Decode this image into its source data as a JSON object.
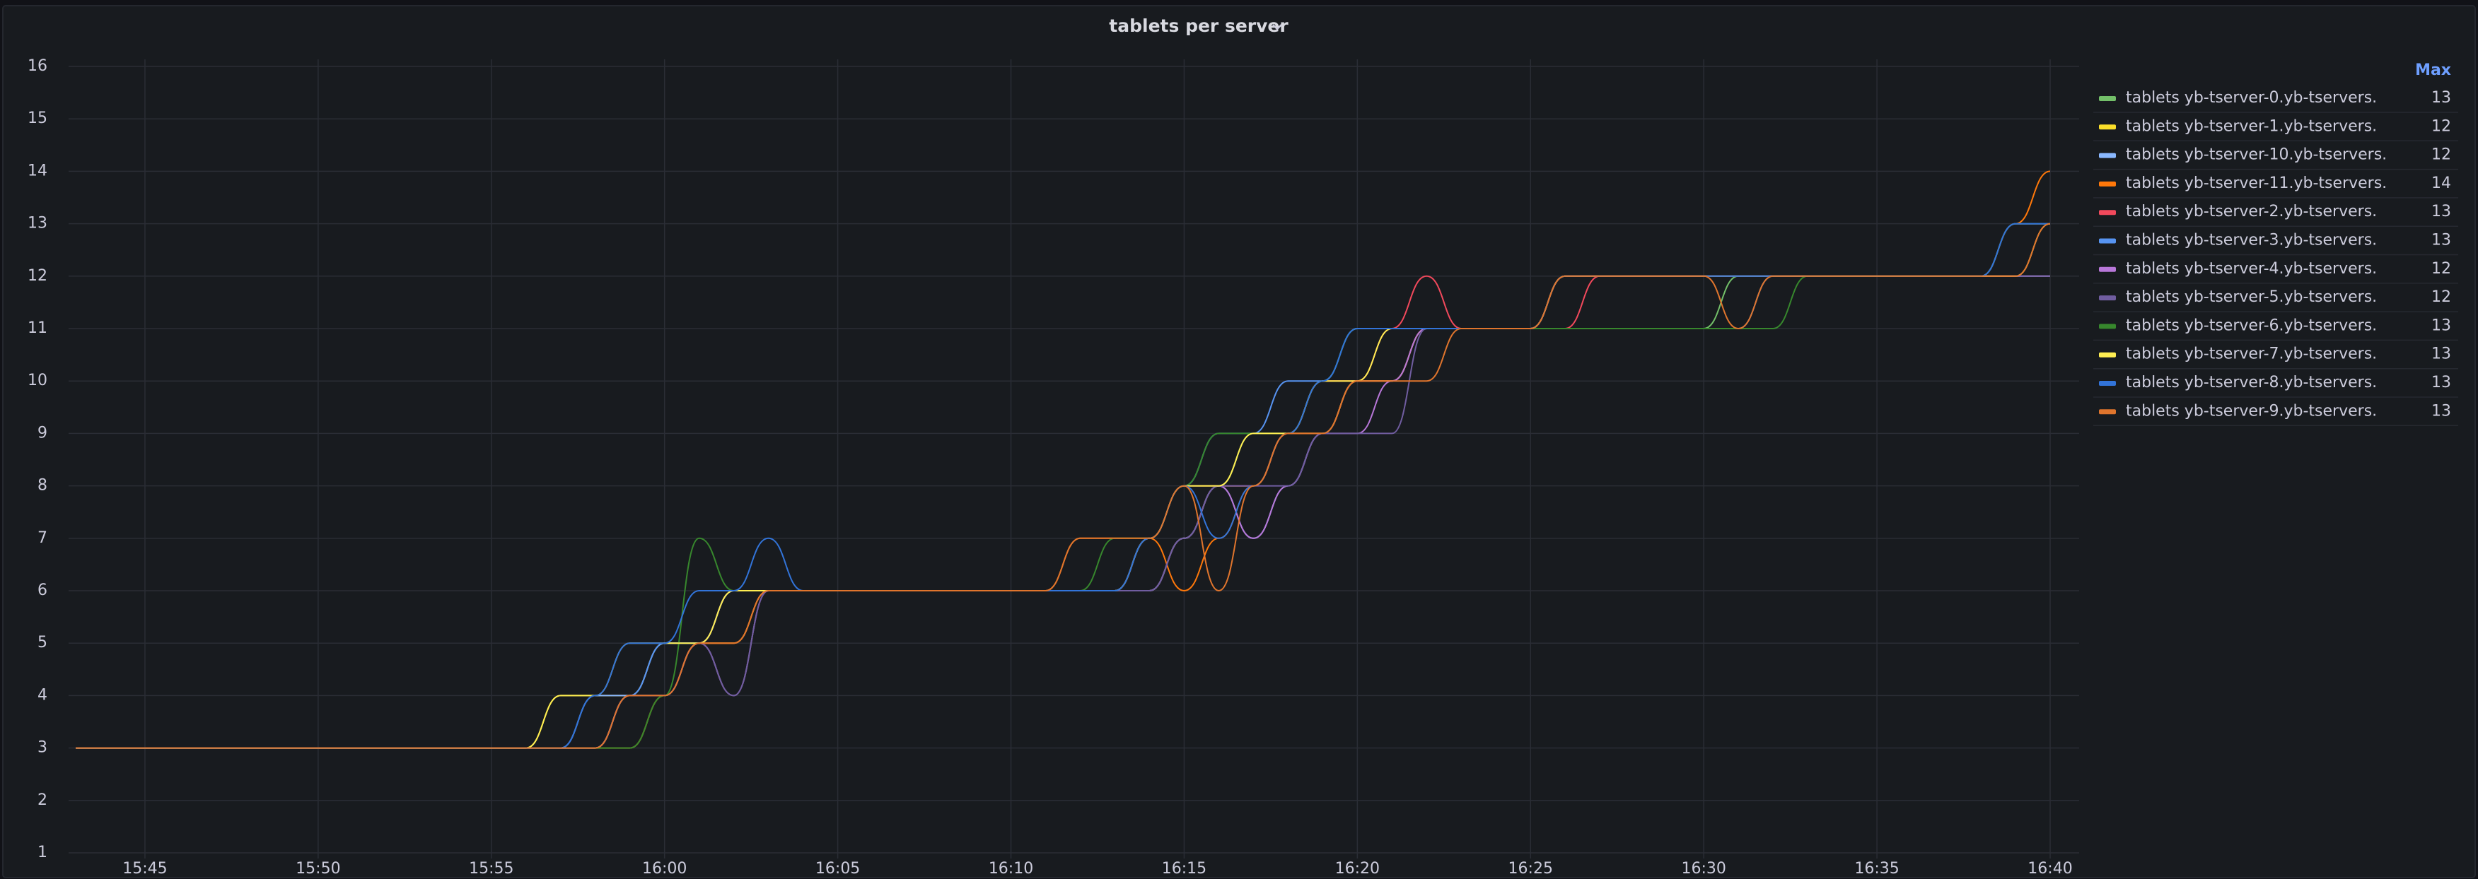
{
  "chart_data": {
    "type": "line",
    "title": "tablets per server",
    "x": [
      "15:43",
      "15:44",
      "15:45",
      "15:46",
      "15:47",
      "15:48",
      "15:49",
      "15:50",
      "15:51",
      "15:52",
      "15:53",
      "15:54",
      "15:55",
      "15:56",
      "15:57",
      "15:58",
      "15:59",
      "16:00",
      "16:01",
      "16:02",
      "16:03",
      "16:04",
      "16:05",
      "16:06",
      "16:07",
      "16:08",
      "16:09",
      "16:10",
      "16:11",
      "16:12",
      "16:13",
      "16:14",
      "16:15",
      "16:16",
      "16:17",
      "16:18",
      "16:19",
      "16:20",
      "16:21",
      "16:22",
      "16:23",
      "16:24",
      "16:25",
      "16:26",
      "16:27",
      "16:28",
      "16:29",
      "16:30",
      "16:31",
      "16:32",
      "16:33",
      "16:34",
      "16:35",
      "16:36",
      "16:37",
      "16:38",
      "16:39",
      "16:40"
    ],
    "xticks": [
      "15:45",
      "15:50",
      "15:55",
      "16:00",
      "16:05",
      "16:10",
      "16:15",
      "16:20",
      "16:25",
      "16:30",
      "16:35",
      "16:40"
    ],
    "ylim": [
      1,
      16
    ],
    "yticks": [
      1,
      2,
      3,
      4,
      5,
      6,
      7,
      8,
      9,
      10,
      11,
      12,
      13,
      14,
      15,
      16
    ],
    "grid": true,
    "legend_header": "Max",
    "series": [
      {
        "name": "tablets yb-tserver-0.yb-tservers.",
        "color": "#73bf69",
        "max": 13,
        "values": [
          3,
          3,
          3,
          3,
          3,
          3,
          3,
          3,
          3,
          3,
          3,
          3,
          3,
          3,
          3,
          3,
          4,
          4,
          5,
          6,
          6,
          6,
          6,
          6,
          6,
          6,
          6,
          6,
          6,
          6,
          6,
          7,
          8,
          8,
          9,
          9,
          10,
          11,
          11,
          11,
          11,
          11,
          11,
          11,
          11,
          11,
          11,
          11,
          12,
          12,
          12,
          12,
          12,
          12,
          12,
          12,
          13,
          13
        ]
      },
      {
        "name": "tablets yb-tserver-1.yb-tservers.",
        "color": "#fade2a",
        "max": 12,
        "values": [
          3,
          3,
          3,
          3,
          3,
          3,
          3,
          3,
          3,
          3,
          3,
          3,
          3,
          3,
          4,
          4,
          4,
          5,
          5,
          5,
          6,
          6,
          6,
          6,
          6,
          6,
          6,
          6,
          6,
          6,
          6,
          6,
          7,
          8,
          8,
          9,
          9,
          10,
          10,
          11,
          11,
          11,
          11,
          12,
          12,
          12,
          12,
          12,
          12,
          12,
          12,
          12,
          12,
          12,
          12,
          12,
          12,
          12
        ]
      },
      {
        "name": "tablets yb-tserver-10.yb-tservers.",
        "color": "#8ab8ff",
        "max": 12,
        "values": [
          3,
          3,
          3,
          3,
          3,
          3,
          3,
          3,
          3,
          3,
          3,
          3,
          3,
          3,
          3,
          4,
          4,
          5,
          5,
          6,
          6,
          6,
          6,
          6,
          6,
          6,
          6,
          6,
          6,
          6,
          6,
          6,
          7,
          8,
          7,
          8,
          9,
          10,
          10,
          11,
          11,
          11,
          11,
          12,
          12,
          12,
          12,
          12,
          12,
          12,
          12,
          12,
          12,
          12,
          12,
          12,
          12,
          12
        ]
      },
      {
        "name": "tablets yb-tserver-11.yb-tservers.",
        "color": "#ff780a",
        "max": 14,
        "values": [
          3,
          3,
          3,
          3,
          3,
          3,
          3,
          3,
          3,
          3,
          3,
          3,
          3,
          3,
          3,
          3,
          3,
          4,
          5,
          5,
          6,
          6,
          6,
          6,
          6,
          6,
          6,
          6,
          6,
          7,
          7,
          7,
          6,
          7,
          8,
          9,
          9,
          10,
          10,
          11,
          11,
          11,
          11,
          12,
          12,
          12,
          12,
          12,
          12,
          12,
          12,
          12,
          12,
          12,
          12,
          12,
          13,
          14
        ]
      },
      {
        "name": "tablets yb-tserver-2.yb-tservers.",
        "color": "#f2495c",
        "max": 13,
        "values": [
          3,
          3,
          3,
          3,
          3,
          3,
          3,
          3,
          3,
          3,
          3,
          3,
          3,
          3,
          3,
          3,
          4,
          4,
          5,
          6,
          6,
          6,
          6,
          6,
          6,
          6,
          6,
          6,
          6,
          6,
          6,
          7,
          8,
          8,
          8,
          9,
          10,
          10,
          11,
          12,
          11,
          11,
          11,
          11,
          12,
          12,
          12,
          12,
          12,
          12,
          12,
          12,
          12,
          12,
          12,
          12,
          13,
          13
        ]
      },
      {
        "name": "tablets yb-tserver-3.yb-tservers.",
        "color": "#5794f2",
        "max": 13,
        "values": [
          3,
          3,
          3,
          3,
          3,
          3,
          3,
          3,
          3,
          3,
          3,
          3,
          3,
          3,
          3,
          3,
          4,
          5,
          5,
          6,
          6,
          6,
          6,
          6,
          6,
          6,
          6,
          6,
          6,
          6,
          6,
          7,
          8,
          9,
          9,
          10,
          10,
          11,
          11,
          11,
          11,
          11,
          11,
          11,
          11,
          11,
          11,
          11,
          11,
          12,
          12,
          12,
          12,
          12,
          12,
          12,
          13,
          13
        ]
      },
      {
        "name": "tablets yb-tserver-4.yb-tservers.",
        "color": "#b877d9",
        "max": 12,
        "values": [
          3,
          3,
          3,
          3,
          3,
          3,
          3,
          3,
          3,
          3,
          3,
          3,
          3,
          3,
          3,
          3,
          4,
          4,
          5,
          4,
          6,
          6,
          6,
          6,
          6,
          6,
          6,
          6,
          6,
          6,
          6,
          6,
          7,
          8,
          7,
          8,
          9,
          9,
          10,
          11,
          11,
          11,
          11,
          12,
          12,
          12,
          12,
          12,
          12,
          12,
          12,
          12,
          12,
          12,
          12,
          12,
          12,
          12
        ]
      },
      {
        "name": "tablets yb-tserver-5.yb-tservers.",
        "color": "#705da0",
        "max": 12,
        "values": [
          3,
          3,
          3,
          3,
          3,
          3,
          3,
          3,
          3,
          3,
          3,
          3,
          3,
          3,
          3,
          3,
          4,
          4,
          5,
          4,
          6,
          6,
          6,
          6,
          6,
          6,
          6,
          6,
          6,
          6,
          6,
          6,
          7,
          8,
          8,
          8,
          9,
          9,
          9,
          11,
          11,
          11,
          11,
          12,
          12,
          12,
          12,
          12,
          12,
          12,
          12,
          12,
          12,
          12,
          12,
          12,
          12,
          12
        ]
      },
      {
        "name": "tablets yb-tserver-6.yb-tservers.",
        "color": "#37872d",
        "max": 13,
        "values": [
          3,
          3,
          3,
          3,
          3,
          3,
          3,
          3,
          3,
          3,
          3,
          3,
          3,
          3,
          3,
          3,
          3,
          4,
          7,
          6,
          6,
          6,
          6,
          6,
          6,
          6,
          6,
          6,
          6,
          6,
          7,
          7,
          8,
          9,
          9,
          9,
          10,
          11,
          11,
          11,
          11,
          11,
          11,
          11,
          11,
          11,
          11,
          11,
          11,
          11,
          12,
          12,
          12,
          12,
          12,
          12,
          13,
          13
        ]
      },
      {
        "name": "tablets yb-tserver-7.yb-tservers.",
        "color": "#ffee52",
        "max": 13,
        "values": [
          3,
          3,
          3,
          3,
          3,
          3,
          3,
          3,
          3,
          3,
          3,
          3,
          3,
          3,
          4,
          4,
          5,
          5,
          5,
          6,
          6,
          6,
          6,
          6,
          6,
          6,
          6,
          6,
          6,
          6,
          6,
          7,
          8,
          8,
          9,
          9,
          10,
          10,
          11,
          11,
          11,
          11,
          11,
          12,
          12,
          12,
          12,
          12,
          12,
          12,
          12,
          12,
          12,
          12,
          12,
          12,
          12,
          13
        ]
      },
      {
        "name": "tablets yb-tserver-8.yb-tservers.",
        "color": "#3274d9",
        "max": 13,
        "values": [
          3,
          3,
          3,
          3,
          3,
          3,
          3,
          3,
          3,
          3,
          3,
          3,
          3,
          3,
          3,
          4,
          5,
          5,
          6,
          6,
          7,
          6,
          6,
          6,
          6,
          6,
          6,
          6,
          6,
          6,
          6,
          7,
          8,
          7,
          8,
          9,
          10,
          11,
          11,
          11,
          11,
          11,
          11,
          12,
          12,
          12,
          12,
          12,
          12,
          12,
          12,
          12,
          12,
          12,
          12,
          12,
          13,
          13
        ]
      },
      {
        "name": "tablets yb-tserver-9.yb-tservers.",
        "color": "#e0752d",
        "max": 13,
        "values": [
          3,
          3,
          3,
          3,
          3,
          3,
          3,
          3,
          3,
          3,
          3,
          3,
          3,
          3,
          3,
          3,
          4,
          4,
          5,
          5,
          6,
          6,
          6,
          6,
          6,
          6,
          6,
          6,
          6,
          7,
          7,
          7,
          8,
          6,
          8,
          9,
          9,
          10,
          10,
          10,
          11,
          11,
          11,
          12,
          12,
          12,
          12,
          12,
          11,
          12,
          12,
          12,
          12,
          12,
          12,
          12,
          12,
          13
        ]
      }
    ]
  }
}
